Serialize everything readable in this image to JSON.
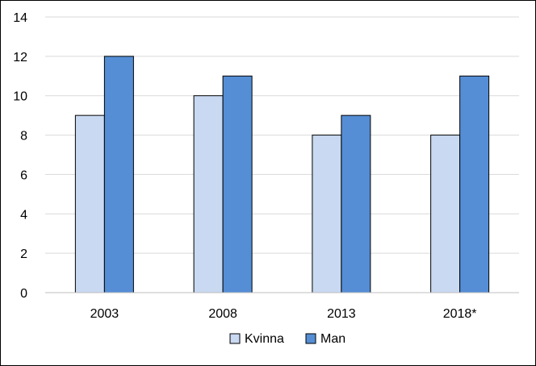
{
  "chart_data": {
    "type": "bar",
    "categories": [
      "2003",
      "2008",
      "2013",
      "2018*"
    ],
    "series": [
      {
        "name": "Kvinna",
        "values": [
          9,
          10,
          8,
          8
        ],
        "color": "#c9d9f1"
      },
      {
        "name": "Man",
        "values": [
          12,
          11,
          9,
          11
        ],
        "color": "#558ed5"
      }
    ],
    "ylim": [
      0,
      14
    ],
    "yticks": [
      0,
      2,
      4,
      6,
      8,
      10,
      12,
      14
    ],
    "grid": true,
    "legend": "bottom"
  }
}
